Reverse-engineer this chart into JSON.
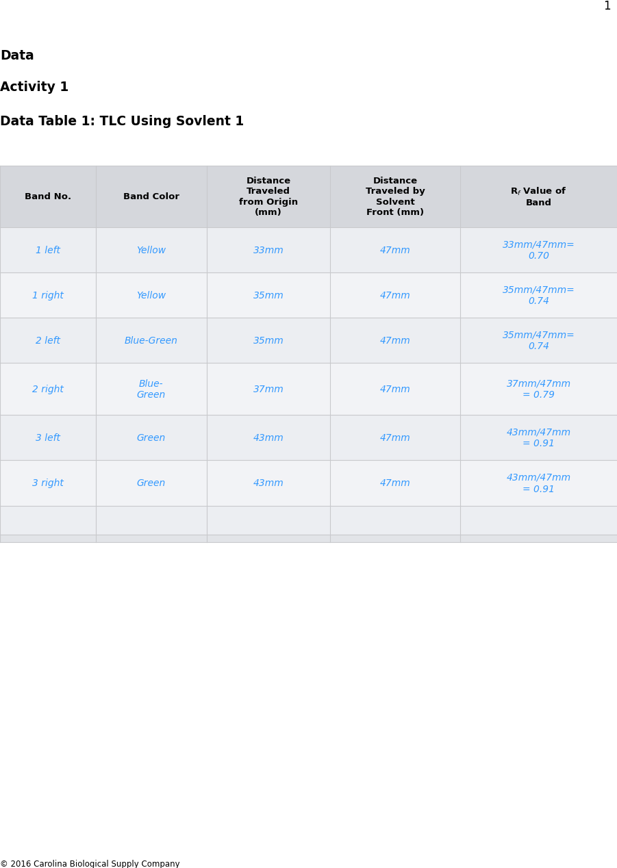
{
  "page_number": "1",
  "heading1": "Data",
  "heading2": "Activity 1",
  "heading3": "Data Table 1: TLC Using Sovlent 1",
  "footer": "© 2016 Carolina Biological Supply Company",
  "rows": [
    [
      "1 left",
      "Yellow",
      "33mm",
      "47mm",
      "33mm/47mm=\n0.70"
    ],
    [
      "1 right",
      "Yellow",
      "35mm",
      "47mm",
      "35mm/47mm=\n0.74"
    ],
    [
      "2 left",
      "Blue-Green",
      "35mm",
      "47mm",
      "35mm/47mm=\n0.74"
    ],
    [
      "2 right",
      "Blue-\nGreen",
      "37mm",
      "47mm",
      "37mm/47mm\n= 0.79"
    ],
    [
      "3 left",
      "Green",
      "43mm",
      "47mm",
      "43mm/47mm\n= 0.91"
    ],
    [
      "3 right",
      "Green",
      "43mm",
      "47mm",
      "43mm/47mm\n= 0.91"
    ],
    [
      "",
      "",
      "",
      "",
      ""
    ]
  ],
  "data_color": "#3399FF",
  "header_color": "#000000",
  "table_bg": "#E2E4E8",
  "header_row_bg": "#D5D7DC",
  "data_row_bg_odd": "#ECEEF2",
  "data_row_bg_even": "#F2F3F6",
  "grid_color": "#C8C9CC",
  "background_color": "#FFFFFF"
}
